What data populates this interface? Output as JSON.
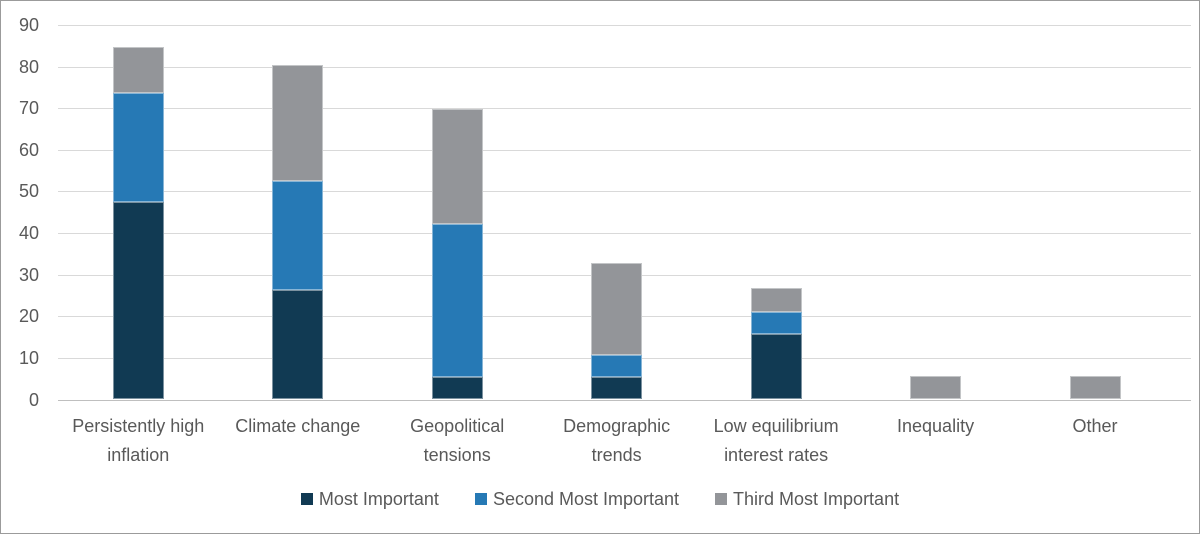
{
  "chart_data": {
    "type": "bar",
    "stacked": true,
    "title": "",
    "categories": [
      {
        "label": "Persistently high inflation",
        "lines": [
          "Persistently high",
          "inflation"
        ]
      },
      {
        "label": "Climate change",
        "lines": [
          "Climate change"
        ]
      },
      {
        "label": "Geopolitical tensions",
        "lines": [
          "Geopolitical",
          "tensions"
        ]
      },
      {
        "label": "Demographic trends",
        "lines": [
          "Demographic",
          "trends"
        ]
      },
      {
        "label": "Low equilibrium interest rates",
        "lines": [
          "Low equilibrium",
          "interest rates"
        ]
      },
      {
        "label": "Inequality",
        "lines": [
          "Inequality"
        ]
      },
      {
        "label": "Other",
        "lines": [
          "Other"
        ]
      }
    ],
    "series": [
      {
        "name": "Most Important",
        "color": "#113A53",
        "values": [
          47.4,
          26.3,
          5.3,
          5.3,
          15.8,
          0,
          0
        ]
      },
      {
        "name": "Second Most Important",
        "color": "#2679B5",
        "values": [
          26.3,
          26.3,
          36.8,
          5.3,
          5.3,
          0,
          0
        ]
      },
      {
        "name": "Third Most Important",
        "color": "#939599",
        "values": [
          11.1,
          27.8,
          27.8,
          22.2,
          5.6,
          5.6,
          5.6
        ]
      }
    ],
    "ylim": [
      0,
      90
    ],
    "yticks": [
      "0",
      "10",
      "20",
      "30",
      "40",
      "50",
      "60",
      "70",
      "80",
      "90"
    ],
    "grid": true,
    "legend_position": "bottom"
  },
  "colors": {
    "background": "#FFFFFF",
    "border": "#9B9B9B",
    "gridline": "#D9D9D9",
    "axis_line": "#BFBFBF",
    "label_text": "#595959"
  }
}
